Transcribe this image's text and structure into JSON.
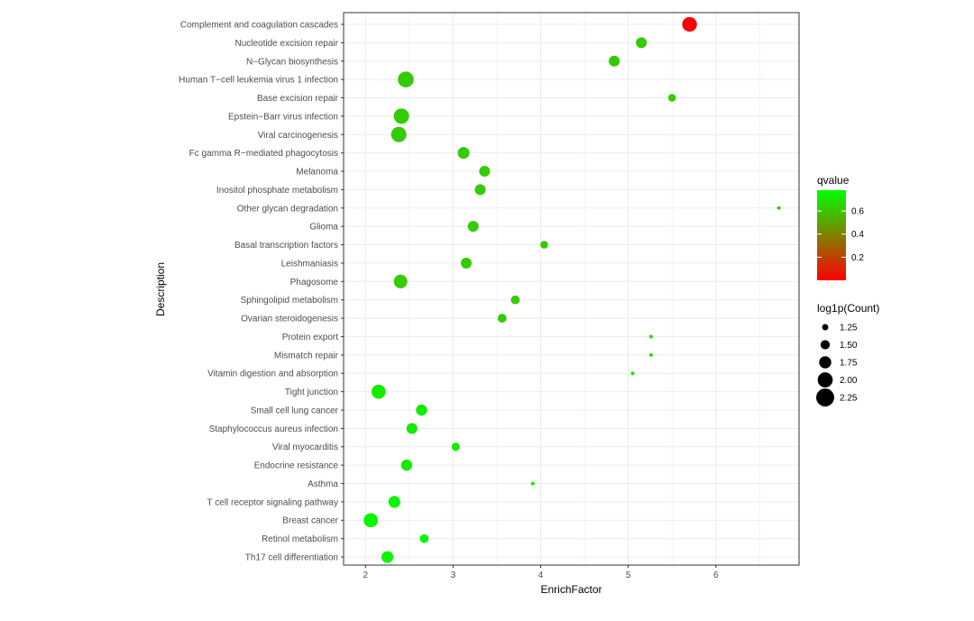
{
  "chart_data": {
    "type": "scatter",
    "title": "",
    "xlabel": "EnrichFactor",
    "ylabel": "Description",
    "xlim": [
      1.75,
      6.95
    ],
    "xticks": [
      2,
      3,
      4,
      5,
      6
    ],
    "grid": true,
    "points": [
      {
        "term": "Complement and coagulation cascades",
        "x": 5.7,
        "qvalue": 0.0,
        "count": 2.05
      },
      {
        "term": "Nucleotide excision repair",
        "x": 5.15,
        "qvalue": 0.62,
        "count": 1.72
      },
      {
        "term": "N−Glycan biosynthesis",
        "x": 4.84,
        "qvalue": 0.62,
        "count": 1.72
      },
      {
        "term": "Human T−cell leukemia virus 1 infection",
        "x": 2.46,
        "qvalue": 0.62,
        "count": 2.15
      },
      {
        "term": "Base excision repair",
        "x": 5.5,
        "qvalue": 0.62,
        "count": 1.45
      },
      {
        "term": "Epstein−Barr virus infection",
        "x": 2.41,
        "qvalue": 0.62,
        "count": 2.1
      },
      {
        "term": "Viral carcinogenesis",
        "x": 2.38,
        "qvalue": 0.62,
        "count": 2.1
      },
      {
        "term": "Fc gamma R−mediated phagocytosis",
        "x": 3.12,
        "qvalue": 0.62,
        "count": 1.8
      },
      {
        "term": "Melanoma",
        "x": 3.36,
        "qvalue": 0.62,
        "count": 1.72
      },
      {
        "term": "Inositol phosphate metabolism",
        "x": 3.31,
        "qvalue": 0.62,
        "count": 1.72
      },
      {
        "term": "Other glycan degradation",
        "x": 6.72,
        "qvalue": 0.62,
        "count": 1.1
      },
      {
        "term": "Glioma",
        "x": 3.23,
        "qvalue": 0.62,
        "count": 1.72
      },
      {
        "term": "Basal transcription factors",
        "x": 4.04,
        "qvalue": 0.62,
        "count": 1.45
      },
      {
        "term": "Leishmaniasis",
        "x": 3.15,
        "qvalue": 0.62,
        "count": 1.72
      },
      {
        "term": "Phagosome",
        "x": 2.4,
        "qvalue": 0.62,
        "count": 1.95
      },
      {
        "term": "Sphingolipid metabolism",
        "x": 3.71,
        "qvalue": 0.62,
        "count": 1.55
      },
      {
        "term": "Ovarian steroidogenesis",
        "x": 3.56,
        "qvalue": 0.62,
        "count": 1.55
      },
      {
        "term": "Protein export",
        "x": 5.26,
        "qvalue": 0.68,
        "count": 1.1
      },
      {
        "term": "Mismatch repair",
        "x": 5.26,
        "qvalue": 0.68,
        "count": 1.1
      },
      {
        "term": "Vitamin digestion and absorption",
        "x": 5.05,
        "qvalue": 0.72,
        "count": 1.1
      },
      {
        "term": "Tight junction",
        "x": 2.15,
        "qvalue": 0.72,
        "count": 2.0
      },
      {
        "term": "Small cell lung cancer",
        "x": 2.64,
        "qvalue": 0.72,
        "count": 1.75
      },
      {
        "term": "Staphylococcus aureus infection",
        "x": 2.53,
        "qvalue": 0.72,
        "count": 1.72
      },
      {
        "term": "Viral myocarditis",
        "x": 3.03,
        "qvalue": 0.72,
        "count": 1.5
      },
      {
        "term": "Endocrine resistance",
        "x": 2.47,
        "qvalue": 0.72,
        "count": 1.75
      },
      {
        "term": "Asthma",
        "x": 3.91,
        "qvalue": 0.72,
        "count": 1.1
      },
      {
        "term": "T cell receptor signaling pathway",
        "x": 2.33,
        "qvalue": 0.75,
        "count": 1.8
      },
      {
        "term": "Breast cancer",
        "x": 2.06,
        "qvalue": 0.75,
        "count": 2.0
      },
      {
        "term": "Retinol metabolism",
        "x": 2.67,
        "qvalue": 0.75,
        "count": 1.55
      },
      {
        "term": "Th17 cell differentiation",
        "x": 2.25,
        "qvalue": 0.75,
        "count": 1.8
      }
    ],
    "color_legend": {
      "title": "qvalue",
      "range": [
        0.0,
        0.78
      ],
      "ticks": [
        0.2,
        0.4,
        0.6
      ],
      "tick_labels": [
        "0.2",
        "0.4",
        "0.6"
      ],
      "low_color": "#ff0000",
      "high_color": "#00ff00"
    },
    "size_legend": {
      "title": "log1p(Count)",
      "values": [
        1.25,
        1.5,
        1.75,
        2.0,
        2.25
      ],
      "labels": [
        "1.25",
        "1.50",
        "1.75",
        "2.00",
        "2.25"
      ]
    },
    "colors": {
      "panel_border": "#333333",
      "grid": "#ebebeb",
      "tick": "#333333"
    }
  }
}
